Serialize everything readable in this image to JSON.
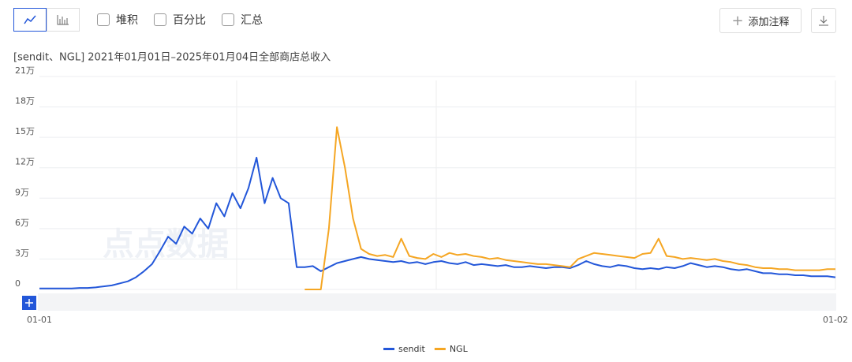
{
  "toolbar": {
    "options": [
      "堆积",
      "百分比",
      "汇总"
    ],
    "annotate": "添加注释"
  },
  "chart_data": {
    "type": "line",
    "subtitle": "[sendit、NGL] 2021年01月01日–2025年01月04日全部商店总收入",
    "watermark": "点点数据",
    "categories": [
      "01-01",
      null,
      null,
      null,
      null,
      null,
      null,
      null,
      null,
      null,
      null,
      null,
      null,
      null,
      null,
      null,
      null,
      null,
      null,
      null,
      null,
      null,
      null,
      null,
      null,
      null,
      null,
      null,
      null,
      null,
      null,
      null,
      null,
      null,
      null,
      null,
      null,
      null,
      null,
      null,
      null,
      null,
      null,
      null,
      null,
      null,
      null,
      null,
      null,
      null,
      null,
      null,
      null,
      null,
      null,
      null,
      null,
      null,
      null,
      null,
      null,
      null,
      null,
      null,
      null,
      null,
      null,
      null,
      null,
      null,
      null,
      null,
      null,
      null,
      null,
      null,
      null,
      null,
      null,
      null,
      null,
      null,
      null,
      null,
      null,
      null,
      null,
      null,
      null,
      null,
      null,
      null,
      null,
      null,
      null,
      null,
      null,
      null,
      null,
      "01-02"
    ],
    "ylim": [
      0,
      210000
    ],
    "yticks": [
      0,
      {
        "value": 30000,
        "label": "3万"
      },
      {
        "value": 60000,
        "label": "6万"
      },
      {
        "value": 90000,
        "label": "9万"
      },
      {
        "value": 120000,
        "label": "12万"
      },
      {
        "value": 150000,
        "label": "15万"
      },
      {
        "value": 180000,
        "label": "18万"
      },
      {
        "value": 210000,
        "label": "21万"
      }
    ],
    "grid": true,
    "legend": "bottom",
    "series": [
      {
        "name": "sendit",
        "color": "#2357d9",
        "values": [
          1000,
          1000,
          1000,
          1000,
          1000,
          1500,
          1500,
          2000,
          3000,
          4000,
          6000,
          8000,
          12000,
          18000,
          25000,
          38000,
          52000,
          45000,
          62000,
          55000,
          70000,
          60000,
          85000,
          72000,
          95000,
          80000,
          100000,
          130000,
          85000,
          110000,
          90000,
          85000,
          22000,
          22000,
          23000,
          18000,
          22000,
          26000,
          28000,
          30000,
          32000,
          30000,
          29000,
          28000,
          27000,
          28000,
          26000,
          27000,
          25000,
          27000,
          28000,
          26000,
          25000,
          27000,
          24000,
          25000,
          24000,
          23000,
          24000,
          22000,
          22000,
          23000,
          22000,
          21000,
          22000,
          22000,
          21000,
          24000,
          28000,
          25000,
          23000,
          22000,
          24000,
          23000,
          21000,
          20000,
          21000,
          20000,
          22000,
          21000,
          23000,
          26000,
          24000,
          22000,
          23000,
          22000,
          20000,
          19000,
          20000,
          18000,
          16000,
          16000,
          15000,
          15000,
          14000,
          14000,
          13000,
          13000,
          13000,
          12000
        ]
      },
      {
        "name": "NGL",
        "color": "#f5a623",
        "values": [
          null,
          null,
          null,
          null,
          null,
          null,
          null,
          null,
          null,
          null,
          null,
          null,
          null,
          null,
          null,
          null,
          null,
          null,
          null,
          null,
          null,
          null,
          null,
          null,
          null,
          null,
          null,
          null,
          null,
          null,
          null,
          null,
          null,
          0,
          0,
          0,
          60000,
          160000,
          120000,
          70000,
          40000,
          35000,
          33000,
          34000,
          32000,
          50000,
          33000,
          31000,
          30000,
          35000,
          32000,
          36000,
          34000,
          35000,
          33000,
          32000,
          30000,
          31000,
          29000,
          28000,
          27000,
          26000,
          25000,
          25000,
          24000,
          23000,
          22000,
          30000,
          33000,
          36000,
          35000,
          34000,
          33000,
          32000,
          31000,
          35000,
          36000,
          50000,
          33000,
          32000,
          30000,
          31000,
          30000,
          29000,
          30000,
          28000,
          27000,
          25000,
          24000,
          22000,
          21000,
          21000,
          20000,
          20000,
          19000,
          19000,
          19000,
          19000,
          20000,
          20000
        ]
      }
    ]
  }
}
